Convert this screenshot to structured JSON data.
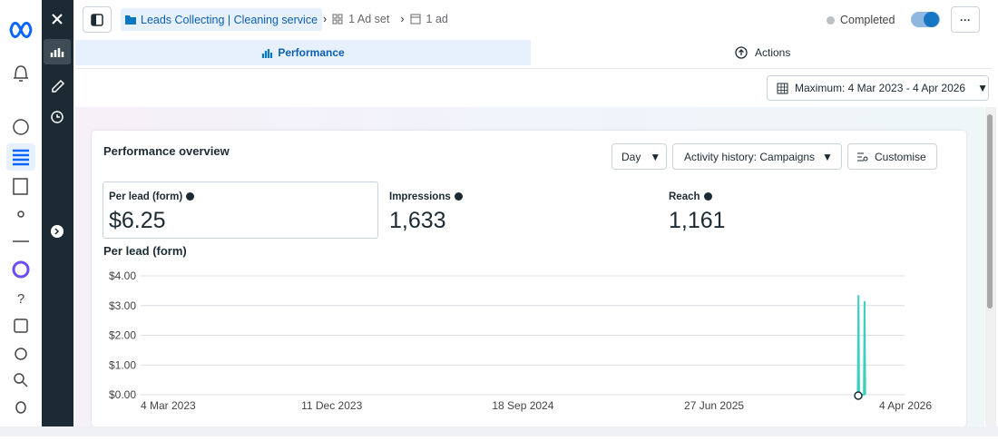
{
  "breadcrumb": {
    "campaign": "Leads Collecting | Cleaning service",
    "ad_set": "1 Ad set",
    "ad": "1 ad"
  },
  "status": "Completed",
  "tabs": [
    "Performance",
    "Actions"
  ],
  "date_range": "Maximum: 4 Mar 2023 - 4 Apr 2026",
  "card": {
    "title": "Performance overview",
    "buttons": [
      "Day",
      "Activity history: Campaigns",
      "Customise"
    ],
    "metrics": [
      {
        "label": "Per lead (form)",
        "value": "$6.25"
      },
      {
        "label": "Impressions",
        "value": "1,633"
      },
      {
        "label": "Reach",
        "value": "1,161"
      }
    ]
  },
  "chart_data": {
    "type": "line",
    "title": "Per lead (form)",
    "x": [
      "2026-01-25",
      "2026-01-26",
      "2026-01-27",
      "2026-02-03",
      "2026-02-04",
      "2026-02-05"
    ],
    "series": [
      {
        "color": "#3dcfc0",
        "values": [
          0,
          3.35,
          0,
          0,
          3.15,
          0
        ]
      }
    ],
    "xlim": [
      "2023-03-04",
      "2026-04-04"
    ],
    "xticks": [
      {
        "value": "2023-03-04",
        "label": "4 Mar 2023"
      },
      {
        "value": "2023-12-11",
        "label": "11 Dec 2023"
      },
      {
        "value": "2024-09-18",
        "label": "18 Sep 2024"
      },
      {
        "value": "2025-06-27",
        "label": "27 Jun 2025"
      },
      {
        "value": "2026-04-04",
        "label": "4 Apr 2026"
      }
    ],
    "ylim": [
      0,
      4
    ],
    "yticks": [
      {
        "value": 0,
        "label": "$0.00"
      },
      {
        "value": 1,
        "label": "$1.00"
      },
      {
        "value": 2,
        "label": "$2.00"
      },
      {
        "value": 3,
        "label": "$3.00"
      },
      {
        "value": 4,
        "label": "$4.00"
      }
    ],
    "grid": true
  }
}
